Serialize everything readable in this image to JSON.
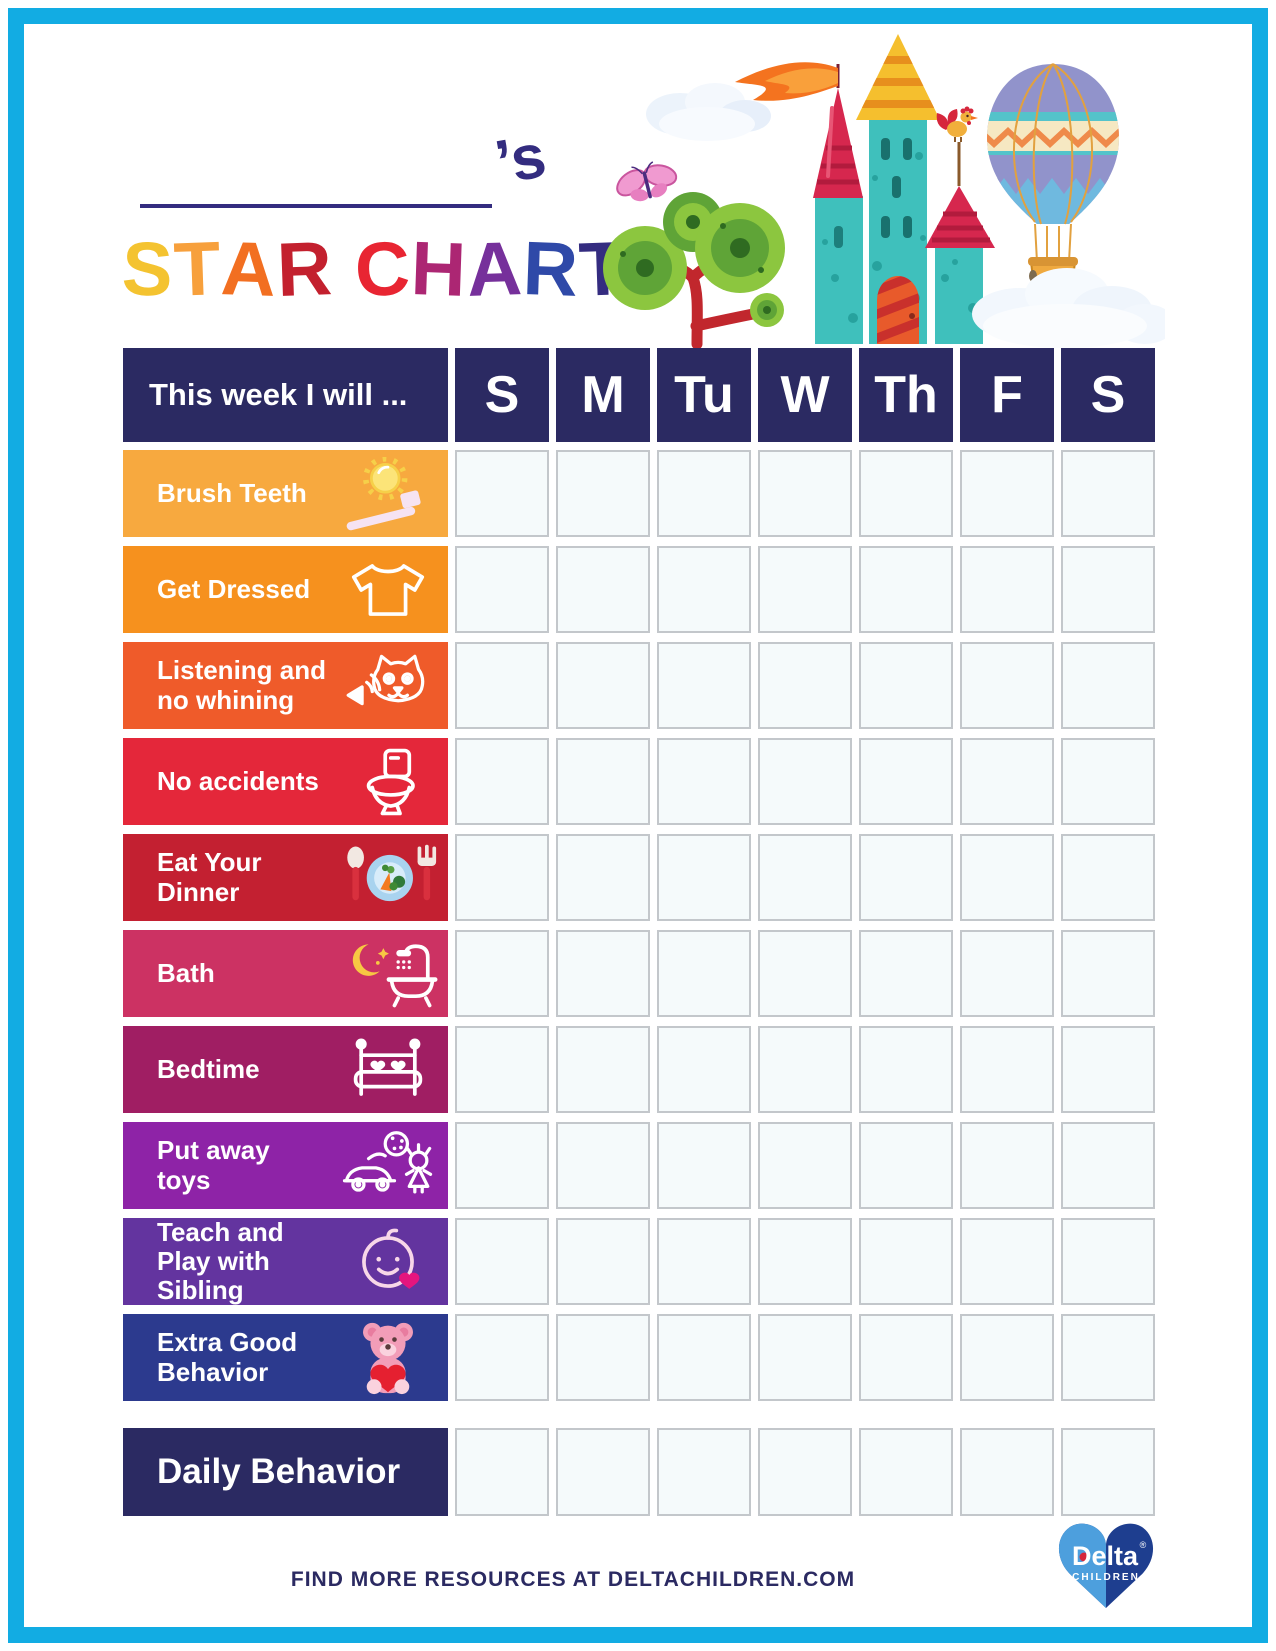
{
  "theme": {
    "frame_color": "#12ACE3",
    "navy": "#2B2A62",
    "cell_bg": "#F5FAFB",
    "cell_border": "#C3C7CB"
  },
  "page": {
    "name_line": {
      "value": "",
      "suffix": "’s"
    },
    "title": {
      "text": "STAR CHART",
      "letters": [
        {
          "char": "S",
          "color": "#F4C330"
        },
        {
          "char": "T",
          "color": "#F7A03C"
        },
        {
          "char": "A",
          "color": "#F26F21"
        },
        {
          "char": "R",
          "color": "#C3202E"
        },
        {
          "char": " ",
          "color": ""
        },
        {
          "char": "C",
          "color": "#E82532"
        },
        {
          "char": "H",
          "color": "#AC2673"
        },
        {
          "char": "A",
          "color": "#76309B"
        },
        {
          "char": "R",
          "color": "#2F49A8"
        },
        {
          "char": "T",
          "color": "#342C80"
        }
      ]
    },
    "artwork_elements": [
      "cloud",
      "butterfly",
      "tree",
      "castle",
      "flag",
      "rooster",
      "hot-air-balloon"
    ],
    "footer": {
      "text": "FIND MORE RESOURCES AT DELTACHILDREN.COM",
      "logo": {
        "brand": "Delta",
        "mark": "®",
        "sub": "CHILDREN",
        "heart_left": "#4D9FDD",
        "heart_right": "#1E3E8F"
      }
    }
  },
  "table": {
    "header_label": "This week I will ...",
    "days": [
      "S",
      "M",
      "Tu",
      "W",
      "Th",
      "F",
      "S"
    ],
    "rows": [
      {
        "label": "Brush Teeth",
        "color": "#F7A93F",
        "icon": "toothbrush-sun-icon"
      },
      {
        "label": "Get Dressed",
        "color": "#F6911E",
        "icon": "tshirt-icon"
      },
      {
        "label": "Listening and no whining",
        "color": "#EF5B2A",
        "icon": "cat-listening-icon"
      },
      {
        "label": "No accidents",
        "color": "#E4273A",
        "icon": "toilet-icon"
      },
      {
        "label": "Eat Your Dinner",
        "color": "#C32031",
        "icon": "dinner-plate-icon"
      },
      {
        "label": "Bath",
        "color": "#CC3263",
        "icon": "bath-icon"
      },
      {
        "label": "Bedtime",
        "color": "#A01E63",
        "icon": "bed-icon"
      },
      {
        "label": "Put away toys",
        "color": "#8E23A7",
        "icon": "toys-icon"
      },
      {
        "label": "Teach and Play with Sibling",
        "color": "#63349F",
        "icon": "baby-sibling-icon"
      },
      {
        "label": "Extra Good Behavior",
        "color": "#2C3A8E",
        "icon": "teddy-bear-icon"
      }
    ],
    "daily_row": {
      "label": "Daily Behavior",
      "color": "#2B2A62"
    }
  }
}
